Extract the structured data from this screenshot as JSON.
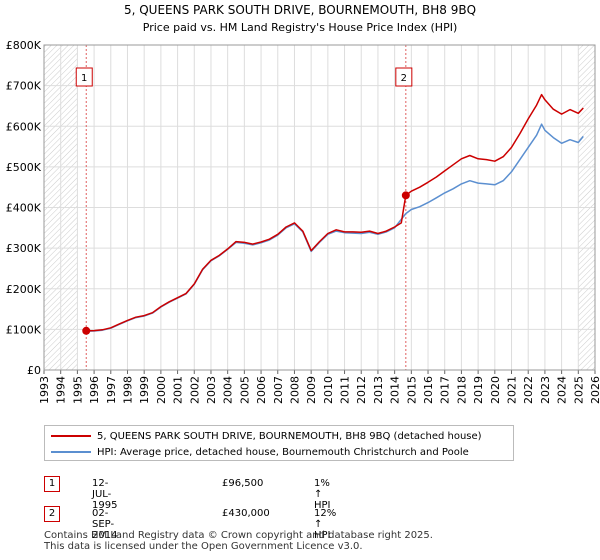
{
  "chart_data": {
    "type": "line",
    "title": "5, QUEENS PARK SOUTH DRIVE, BOURNEMOUTH, BH8 9BQ",
    "subtitle": "Price paid vs. HM Land Registry's House Price Index (HPI)",
    "xlim": [
      1993,
      2026
    ],
    "ylim": [
      0,
      800000
    ],
    "x_ticks": [
      "1993",
      "1994",
      "1995",
      "1996",
      "1997",
      "1998",
      "1999",
      "2000",
      "2001",
      "2002",
      "2003",
      "2004",
      "2005",
      "2006",
      "2007",
      "2008",
      "2009",
      "2010",
      "2011",
      "2012",
      "2013",
      "2014",
      "2015",
      "2016",
      "2017",
      "2018",
      "2019",
      "2020",
      "2021",
      "2022",
      "2023",
      "2024",
      "2025",
      "2026"
    ],
    "y_ticks": [
      {
        "value": 0,
        "label": "£0"
      },
      {
        "value": 100000,
        "label": "£100K"
      },
      {
        "value": 200000,
        "label": "£200K"
      },
      {
        "value": 300000,
        "label": "£300K"
      },
      {
        "value": 400000,
        "label": "£400K"
      },
      {
        "value": 500000,
        "label": "£500K"
      },
      {
        "value": 600000,
        "label": "£600K"
      },
      {
        "value": 700000,
        "label": "£700K"
      },
      {
        "value": 800000,
        "label": "£800K"
      }
    ],
    "grid": true,
    "hatched_ranges": [
      [
        1993,
        1995.0
      ],
      [
        2025.0,
        2026
      ]
    ],
    "colors": {
      "property": "#cc0000",
      "hpi": "#5b8fd0",
      "grid": "#dddddd",
      "marker_line": "#e06060"
    },
    "series": [
      {
        "name": "5, QUEENS PARK SOUTH DRIVE, BOURNEMOUTH, BH8 9BQ (detached house)",
        "key": "property",
        "points": [
          [
            1995.53,
            96500
          ],
          [
            1996.0,
            97000
          ],
          [
            1996.5,
            99000
          ],
          [
            1997.0,
            104000
          ],
          [
            1997.5,
            113000
          ],
          [
            1998.0,
            122000
          ],
          [
            1998.5,
            130000
          ],
          [
            1999.0,
            134000
          ],
          [
            1999.5,
            141000
          ],
          [
            2000.0,
            156000
          ],
          [
            2000.5,
            168000
          ],
          [
            2001.0,
            178000
          ],
          [
            2001.5,
            188000
          ],
          [
            2002.0,
            212000
          ],
          [
            2002.5,
            248000
          ],
          [
            2003.0,
            270000
          ],
          [
            2003.5,
            282000
          ],
          [
            2004.0,
            298000
          ],
          [
            2004.5,
            316000
          ],
          [
            2005.0,
            314000
          ],
          [
            2005.5,
            310000
          ],
          [
            2006.0,
            315000
          ],
          [
            2006.5,
            322000
          ],
          [
            2007.0,
            334000
          ],
          [
            2007.5,
            352000
          ],
          [
            2008.0,
            362000
          ],
          [
            2008.5,
            342000
          ],
          [
            2009.0,
            294000
          ],
          [
            2009.5,
            316000
          ],
          [
            2010.0,
            336000
          ],
          [
            2010.5,
            345000
          ],
          [
            2011.0,
            340000
          ],
          [
            2011.5,
            340000
          ],
          [
            2012.0,
            339000
          ],
          [
            2012.5,
            342000
          ],
          [
            2013.0,
            336000
          ],
          [
            2013.5,
            342000
          ],
          [
            2014.0,
            352000
          ],
          [
            2014.4,
            362000
          ],
          [
            2014.67,
            430000
          ],
          [
            2015.0,
            440000
          ],
          [
            2015.5,
            450000
          ],
          [
            2016.0,
            462000
          ],
          [
            2016.5,
            475000
          ],
          [
            2017.0,
            490000
          ],
          [
            2017.5,
            505000
          ],
          [
            2018.0,
            520000
          ],
          [
            2018.5,
            528000
          ],
          [
            2019.0,
            520000
          ],
          [
            2019.5,
            518000
          ],
          [
            2020.0,
            514000
          ],
          [
            2020.5,
            525000
          ],
          [
            2021.0,
            548000
          ],
          [
            2021.5,
            582000
          ],
          [
            2022.0,
            618000
          ],
          [
            2022.5,
            652000
          ],
          [
            2022.8,
            678000
          ],
          [
            2023.0,
            665000
          ],
          [
            2023.5,
            642000
          ],
          [
            2024.0,
            630000
          ],
          [
            2024.5,
            641000
          ],
          [
            2025.0,
            632000
          ],
          [
            2025.3,
            645000
          ]
        ]
      },
      {
        "name": "HPI: Average price, detached house, Bournemouth Christchurch and Poole",
        "key": "hpi",
        "points": [
          [
            1995.53,
            95500
          ],
          [
            1996.0,
            96000
          ],
          [
            1996.5,
            98000
          ],
          [
            1997.0,
            103000
          ],
          [
            1997.5,
            112000
          ],
          [
            1998.0,
            121000
          ],
          [
            1998.5,
            129000
          ],
          [
            1999.0,
            133000
          ],
          [
            1999.5,
            140000
          ],
          [
            2000.0,
            155000
          ],
          [
            2000.5,
            167000
          ],
          [
            2001.0,
            177000
          ],
          [
            2001.5,
            187000
          ],
          [
            2002.0,
            211000
          ],
          [
            2002.5,
            247000
          ],
          [
            2003.0,
            269000
          ],
          [
            2003.5,
            281000
          ],
          [
            2004.0,
            297000
          ],
          [
            2004.5,
            314000
          ],
          [
            2005.0,
            312000
          ],
          [
            2005.5,
            308000
          ],
          [
            2006.0,
            313000
          ],
          [
            2006.5,
            320000
          ],
          [
            2007.0,
            332000
          ],
          [
            2007.5,
            350000
          ],
          [
            2008.0,
            360000
          ],
          [
            2008.5,
            340000
          ],
          [
            2009.0,
            292000
          ],
          [
            2009.5,
            314000
          ],
          [
            2010.0,
            334000
          ],
          [
            2010.5,
            342000
          ],
          [
            2011.0,
            338000
          ],
          [
            2011.5,
            337000
          ],
          [
            2012.0,
            336000
          ],
          [
            2012.5,
            339000
          ],
          [
            2013.0,
            334000
          ],
          [
            2013.5,
            340000
          ],
          [
            2014.0,
            350000
          ],
          [
            2014.67,
            385000
          ],
          [
            2015.0,
            395000
          ],
          [
            2015.5,
            402000
          ],
          [
            2016.0,
            412000
          ],
          [
            2016.5,
            424000
          ],
          [
            2017.0,
            436000
          ],
          [
            2017.5,
            446000
          ],
          [
            2018.0,
            458000
          ],
          [
            2018.5,
            466000
          ],
          [
            2019.0,
            460000
          ],
          [
            2019.5,
            458000
          ],
          [
            2020.0,
            456000
          ],
          [
            2020.5,
            466000
          ],
          [
            2021.0,
            488000
          ],
          [
            2021.5,
            518000
          ],
          [
            2022.0,
            548000
          ],
          [
            2022.5,
            578000
          ],
          [
            2022.8,
            605000
          ],
          [
            2023.0,
            590000
          ],
          [
            2023.5,
            572000
          ],
          [
            2024.0,
            558000
          ],
          [
            2024.5,
            567000
          ],
          [
            2025.0,
            560000
          ],
          [
            2025.3,
            575000
          ]
        ]
      }
    ],
    "annotations": [
      {
        "id": "1",
        "x": 1995.53,
        "y": 96500
      },
      {
        "id": "2",
        "x": 2014.67,
        "y": 430000
      }
    ]
  },
  "legend": {
    "property_label": "5, QUEENS PARK SOUTH DRIVE, BOURNEMOUTH, BH8 9BQ (detached house)",
    "hpi_label": "HPI: Average price, detached house, Bournemouth Christchurch and Poole"
  },
  "transactions": [
    {
      "id": "1",
      "date": "12-JUL-1995",
      "price": "£96,500",
      "hpi": "1% ↑ HPI"
    },
    {
      "id": "2",
      "date": "02-SEP-2014",
      "price": "£430,000",
      "hpi": "12% ↑ HPI"
    }
  ],
  "footer": {
    "line1": "Contains HM Land Registry data © Crown copyright and database right 2025.",
    "line2": "This data is licensed under the Open Government Licence v3.0."
  }
}
